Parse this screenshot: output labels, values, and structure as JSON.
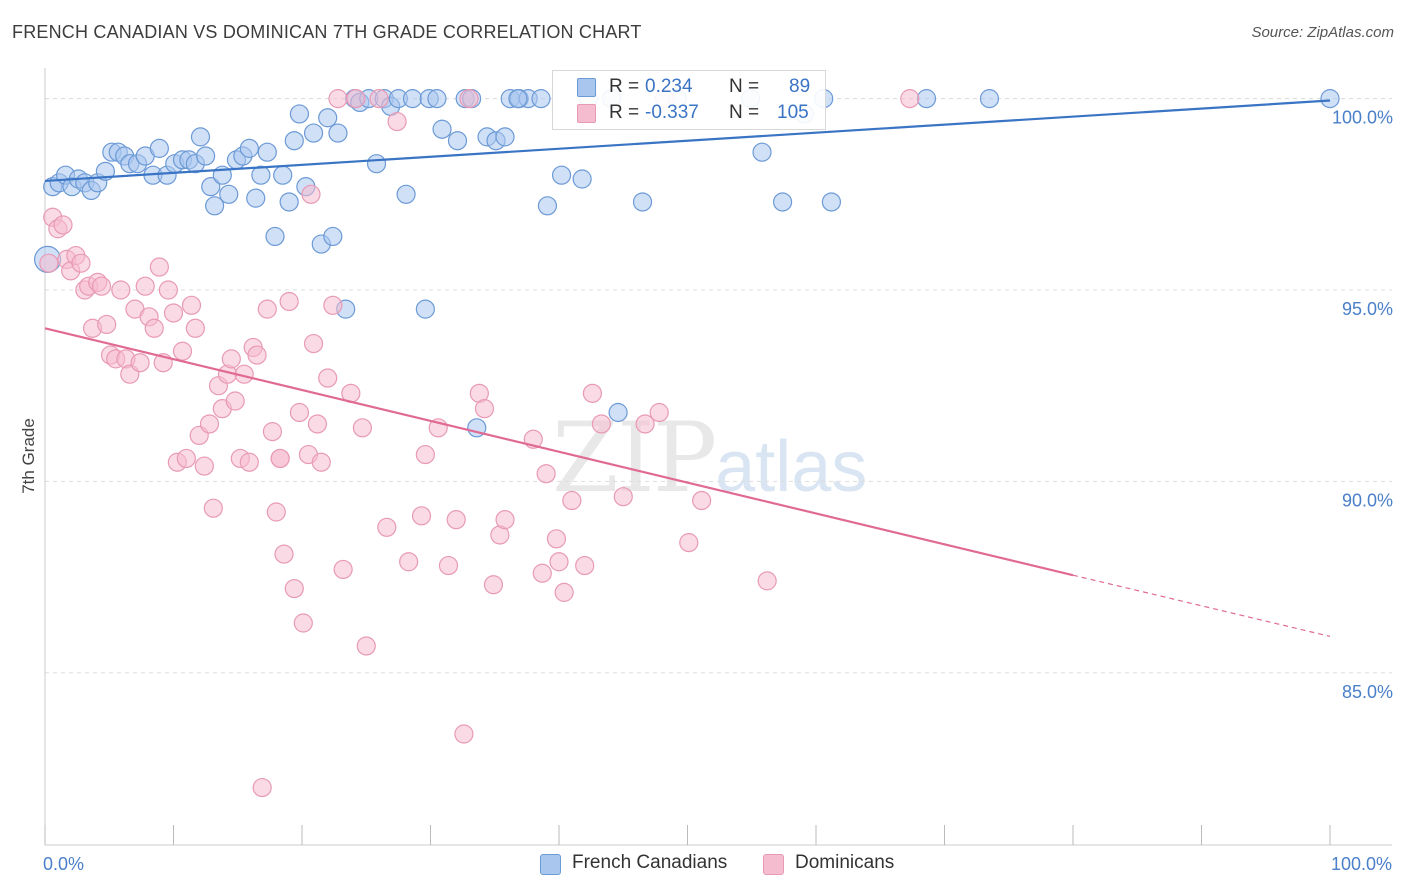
{
  "title": "FRENCH CANADIAN VS DOMINICAN 7TH GRADE CORRELATION CHART",
  "source": "Source: ZipAtlas.com",
  "watermark": {
    "zip": "ZIP",
    "atlas": "atlas"
  },
  "colors": {
    "blue": "#3a74c4",
    "blue_fill": "#a9c6ee",
    "blue_stroke": "#6c9ad6",
    "pink": "#e06a94",
    "pink_fill": "#f5bcd0",
    "pink_stroke": "#e89ab5",
    "grid": "#dddddd",
    "tick_text": "#4a7fc9"
  },
  "legend": {
    "rows": [
      {
        "r_label": "R =",
        "r_value": "0.234",
        "n_label": "N =",
        "n_value": "89"
      },
      {
        "r_label": "R =",
        "r_value": "-0.337",
        "n_label": "N =",
        "n_value": "105"
      }
    ]
  },
  "bottom_legend": [
    "French Canadians",
    "Dominicans"
  ],
  "chart_data": {
    "type": "scatter",
    "title": "FRENCH CANADIAN VS DOMINICAN 7TH GRADE CORRELATION CHART",
    "xlabel": "",
    "ylabel": "7th Grade",
    "xlim": [
      0,
      100
    ],
    "ylim": [
      80.5,
      100.8
    ],
    "x_tick_labels": [
      "0.0%",
      "100.0%"
    ],
    "y_ticks": [
      85,
      90,
      95,
      100
    ],
    "y_tick_labels": [
      "85.0%",
      "90.0%",
      "95.0%",
      "100.0%"
    ],
    "grid": true,
    "legend_position": "top-center",
    "series": [
      {
        "name": "French Canadians",
        "r": 0.234,
        "n": 89,
        "trend": {
          "x0": 0,
          "y0": 97.85,
          "x1": 100,
          "y1": 99.95
        },
        "points": [
          [
            0.2,
            95.8
          ],
          [
            0.6,
            97.7
          ],
          [
            1.1,
            97.8
          ],
          [
            1.6,
            98.0
          ],
          [
            2.1,
            97.7
          ],
          [
            2.6,
            97.9
          ],
          [
            3.1,
            97.8
          ],
          [
            3.6,
            97.6
          ],
          [
            4.1,
            97.8
          ],
          [
            4.7,
            98.1
          ],
          [
            5.2,
            98.6
          ],
          [
            5.7,
            98.6
          ],
          [
            6.2,
            98.5
          ],
          [
            6.6,
            98.3
          ],
          [
            7.2,
            98.3
          ],
          [
            7.8,
            98.5
          ],
          [
            8.4,
            98.0
          ],
          [
            8.9,
            98.7
          ],
          [
            9.5,
            98.0
          ],
          [
            10.1,
            98.3
          ],
          [
            10.7,
            98.4
          ],
          [
            11.2,
            98.4
          ],
          [
            11.7,
            98.3
          ],
          [
            12.1,
            99.0
          ],
          [
            12.5,
            98.5
          ],
          [
            12.9,
            97.7
          ],
          [
            13.2,
            97.2
          ],
          [
            13.8,
            98.0
          ],
          [
            14.3,
            97.5
          ],
          [
            14.9,
            98.4
          ],
          [
            15.4,
            98.5
          ],
          [
            15.9,
            98.7
          ],
          [
            16.4,
            97.4
          ],
          [
            16.8,
            98.0
          ],
          [
            17.3,
            98.6
          ],
          [
            17.9,
            96.4
          ],
          [
            18.5,
            98.0
          ],
          [
            19.0,
            97.3
          ],
          [
            19.4,
            98.9
          ],
          [
            19.8,
            99.6
          ],
          [
            20.3,
            97.7
          ],
          [
            20.9,
            99.1
          ],
          [
            21.5,
            96.2
          ],
          [
            22.0,
            99.5
          ],
          [
            22.4,
            96.4
          ],
          [
            22.8,
            99.1
          ],
          [
            23.4,
            94.5
          ],
          [
            24.1,
            100.0
          ],
          [
            24.5,
            99.9
          ],
          [
            25.2,
            100.0
          ],
          [
            25.8,
            98.3
          ],
          [
            26.4,
            100.0
          ],
          [
            26.9,
            99.8
          ],
          [
            27.5,
            100.0
          ],
          [
            28.1,
            97.5
          ],
          [
            28.6,
            100.0
          ],
          [
            29.6,
            94.5
          ],
          [
            29.9,
            100.0
          ],
          [
            30.5,
            100.0
          ],
          [
            30.9,
            99.2
          ],
          [
            32.1,
            98.9
          ],
          [
            32.7,
            100.0
          ],
          [
            33.2,
            100.0
          ],
          [
            33.6,
            91.4
          ],
          [
            34.4,
            99.0
          ],
          [
            35.1,
            98.9
          ],
          [
            35.8,
            99.0
          ],
          [
            36.2,
            100.0
          ],
          [
            36.9,
            100.0
          ],
          [
            37.6,
            100.0
          ],
          [
            38.6,
            100.0
          ],
          [
            39.1,
            97.2
          ],
          [
            40.2,
            98.0
          ],
          [
            41.8,
            97.9
          ],
          [
            42.3,
            100.0
          ],
          [
            44.6,
            91.8
          ],
          [
            46.5,
            97.3
          ],
          [
            49.2,
            100.0
          ],
          [
            55.8,
            98.6
          ],
          [
            57.4,
            97.3
          ],
          [
            60.6,
            100.0
          ],
          [
            61.2,
            97.3
          ],
          [
            68.6,
            100.0
          ],
          [
            73.5,
            100.0
          ],
          [
            59.1,
            99.6
          ],
          [
            44.1,
            100.0
          ],
          [
            54.9,
            100.0
          ],
          [
            36.8,
            100.0
          ],
          [
            100.0,
            100.0
          ]
        ]
      },
      {
        "name": "Dominicans",
        "r": -0.337,
        "n": 105,
        "trend": {
          "x0": 0,
          "y0": 94.0,
          "x1": 80,
          "y1": 87.55
        },
        "trend_dashed": {
          "x0": 80,
          "y0": 87.55,
          "x1": 100,
          "y1": 85.95
        },
        "points": [
          [
            0.3,
            95.7
          ],
          [
            0.6,
            96.9
          ],
          [
            1.0,
            96.6
          ],
          [
            1.4,
            96.7
          ],
          [
            1.7,
            95.8
          ],
          [
            2.0,
            95.5
          ],
          [
            2.4,
            95.9
          ],
          [
            2.8,
            95.7
          ],
          [
            3.1,
            95.0
          ],
          [
            3.4,
            95.1
          ],
          [
            3.7,
            94.0
          ],
          [
            4.1,
            95.2
          ],
          [
            4.4,
            95.1
          ],
          [
            4.8,
            94.1
          ],
          [
            5.1,
            93.3
          ],
          [
            5.5,
            93.2
          ],
          [
            5.9,
            95.0
          ],
          [
            6.3,
            93.2
          ],
          [
            6.6,
            92.8
          ],
          [
            7.0,
            94.5
          ],
          [
            7.4,
            93.1
          ],
          [
            7.8,
            95.1
          ],
          [
            8.1,
            94.3
          ],
          [
            8.5,
            94.0
          ],
          [
            8.9,
            95.6
          ],
          [
            9.2,
            93.1
          ],
          [
            9.6,
            95.0
          ],
          [
            10.0,
            94.4
          ],
          [
            10.3,
            90.5
          ],
          [
            10.7,
            93.4
          ],
          [
            11.0,
            90.6
          ],
          [
            11.4,
            94.6
          ],
          [
            11.7,
            94.0
          ],
          [
            12.0,
            91.2
          ],
          [
            12.4,
            90.4
          ],
          [
            12.8,
            91.5
          ],
          [
            13.1,
            89.3
          ],
          [
            13.5,
            92.5
          ],
          [
            13.8,
            91.9
          ],
          [
            14.2,
            92.8
          ],
          [
            14.5,
            93.2
          ],
          [
            14.8,
            92.1
          ],
          [
            15.2,
            90.6
          ],
          [
            15.5,
            92.8
          ],
          [
            15.9,
            90.5
          ],
          [
            16.2,
            93.5
          ],
          [
            16.5,
            93.3
          ],
          [
            16.9,
            82.0
          ],
          [
            17.3,
            94.5
          ],
          [
            17.7,
            91.3
          ],
          [
            18.0,
            89.2
          ],
          [
            18.3,
            90.6
          ],
          [
            18.6,
            88.1
          ],
          [
            19.0,
            94.7
          ],
          [
            19.4,
            87.2
          ],
          [
            19.8,
            91.8
          ],
          [
            20.1,
            86.3
          ],
          [
            20.5,
            90.7
          ],
          [
            20.9,
            93.6
          ],
          [
            21.2,
            91.5
          ],
          [
            21.5,
            90.5
          ],
          [
            22.0,
            92.7
          ],
          [
            22.4,
            94.6
          ],
          [
            22.8,
            100.0
          ],
          [
            23.2,
            87.7
          ],
          [
            23.8,
            92.3
          ],
          [
            24.2,
            100.0
          ],
          [
            24.7,
            91.4
          ],
          [
            25.0,
            85.7
          ],
          [
            26.0,
            100.0
          ],
          [
            26.6,
            88.8
          ],
          [
            27.4,
            99.4
          ],
          [
            28.3,
            87.9
          ],
          [
            29.3,
            89.1
          ],
          [
            29.6,
            90.7
          ],
          [
            30.6,
            91.4
          ],
          [
            31.4,
            87.8
          ],
          [
            32.0,
            89.0
          ],
          [
            32.6,
            83.4
          ],
          [
            33.0,
            100.0
          ],
          [
            33.8,
            92.3
          ],
          [
            34.2,
            91.9
          ],
          [
            34.9,
            87.3
          ],
          [
            35.4,
            88.6
          ],
          [
            35.8,
            89.0
          ],
          [
            38.0,
            91.1
          ],
          [
            38.7,
            87.6
          ],
          [
            39.0,
            90.2
          ],
          [
            39.8,
            88.5
          ],
          [
            40.0,
            87.9
          ],
          [
            40.4,
            87.1
          ],
          [
            41.0,
            89.5
          ],
          [
            42.0,
            87.8
          ],
          [
            42.6,
            92.3
          ],
          [
            43.3,
            91.5
          ],
          [
            45.0,
            89.6
          ],
          [
            46.7,
            91.5
          ],
          [
            47.8,
            91.8
          ],
          [
            48.2,
            100.0
          ],
          [
            50.1,
            88.4
          ],
          [
            51.1,
            89.5
          ],
          [
            56.2,
            87.4
          ],
          [
            67.3,
            100.0
          ],
          [
            20.7,
            97.5
          ],
          [
            18.3,
            90.6
          ]
        ]
      }
    ]
  }
}
